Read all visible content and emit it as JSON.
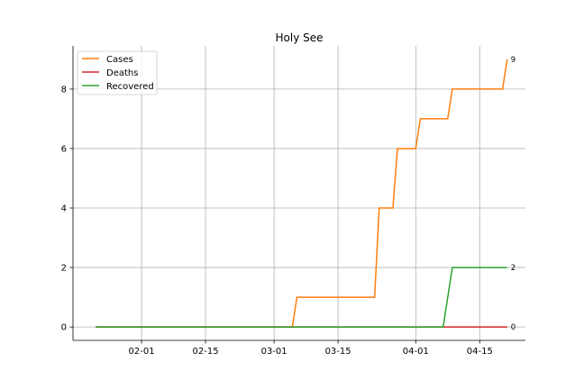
{
  "chart_data": {
    "type": "line",
    "title": "Holy See",
    "xlabel": "",
    "ylabel": "",
    "x_start": "2020-01-22",
    "x_range": [
      "2020-01-17",
      "2020-04-25"
    ],
    "ylim": [
      -0.45,
      9.45
    ],
    "x_ticks": [
      {
        "date": "2020-02-01",
        "label": "02-01"
      },
      {
        "date": "2020-02-15",
        "label": "02-15"
      },
      {
        "date": "2020-03-01",
        "label": "03-01"
      },
      {
        "date": "2020-03-15",
        "label": "03-15"
      },
      {
        "date": "2020-04-01",
        "label": "04-01"
      },
      {
        "date": "2020-04-15",
        "label": "04-15"
      }
    ],
    "y_ticks": [
      0,
      2,
      4,
      6,
      8
    ],
    "grid": true,
    "legend_position": "top-left",
    "series": [
      {
        "name": "Cases",
        "color": "#ff7f0e",
        "points": [
          [
            "2020-01-22",
            0
          ],
          [
            "2020-03-05",
            0
          ],
          [
            "2020-03-06",
            1
          ],
          [
            "2020-03-23",
            1
          ],
          [
            "2020-03-24",
            4
          ],
          [
            "2020-03-27",
            4
          ],
          [
            "2020-03-28",
            6
          ],
          [
            "2020-04-01",
            6
          ],
          [
            "2020-04-02",
            7
          ],
          [
            "2020-04-08",
            7
          ],
          [
            "2020-04-09",
            8
          ],
          [
            "2020-04-20",
            8
          ],
          [
            "2020-04-21",
            9
          ]
        ],
        "end_label": "9"
      },
      {
        "name": "Deaths",
        "color": "#d62728",
        "points": [
          [
            "2020-01-22",
            0
          ],
          [
            "2020-04-21",
            0
          ]
        ],
        "end_label": "0"
      },
      {
        "name": "Recovered",
        "color": "#2ca02c",
        "points": [
          [
            "2020-01-22",
            0
          ],
          [
            "2020-04-07",
            0
          ],
          [
            "2020-04-09",
            2
          ],
          [
            "2020-04-21",
            2
          ]
        ],
        "end_label": "2"
      }
    ]
  }
}
